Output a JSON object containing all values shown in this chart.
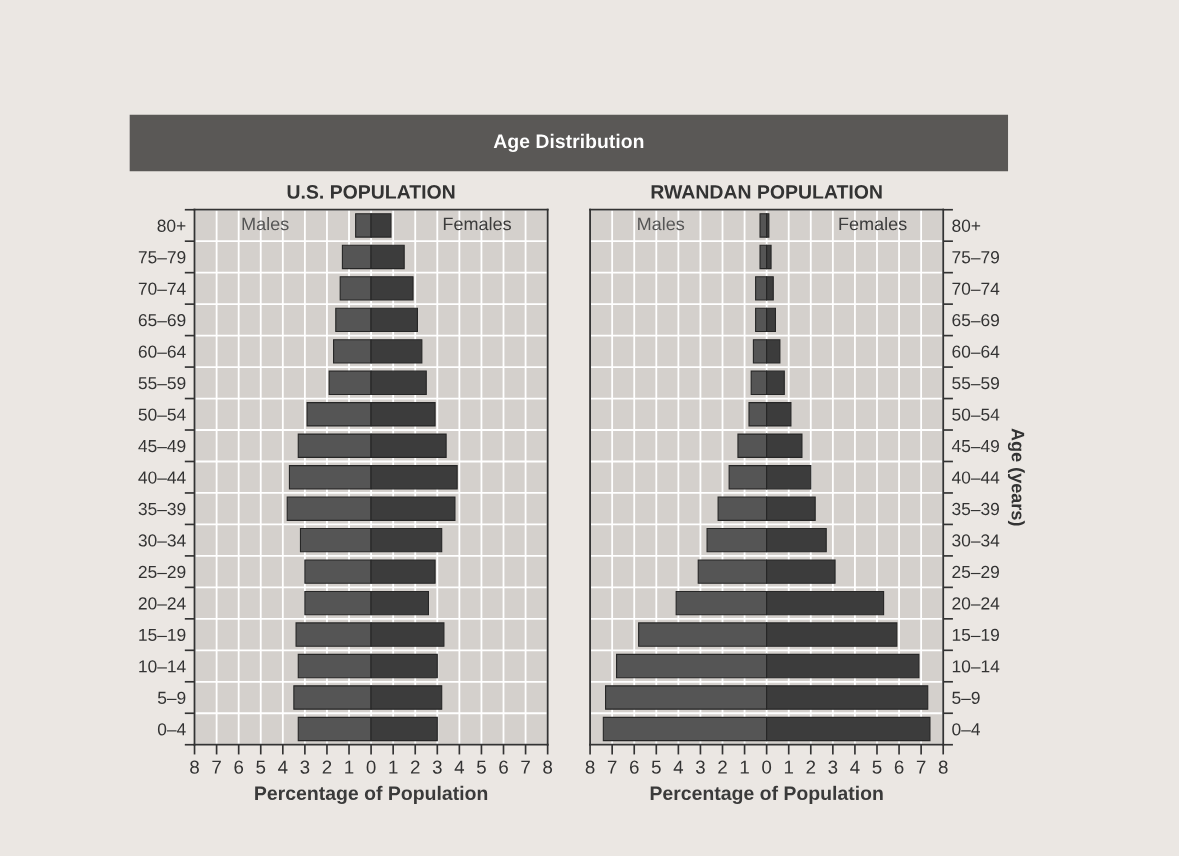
{
  "chart_data": [
    {
      "type": "bar",
      "orientation": "horizontal",
      "stacked": true,
      "title": "Age Distribution",
      "subtitle": "U.S. POPULATION",
      "xlabel": "Percentage of Population",
      "categories": [
        "80+",
        "75–79",
        "70–74",
        "65–69",
        "60–64",
        "55–59",
        "50–54",
        "45–49",
        "40–44",
        "35–39",
        "30–34",
        "25–29",
        "20–24",
        "15–19",
        "10–14",
        "5–9",
        "0–4"
      ],
      "series": [
        {
          "name": "Males",
          "color": "#555555",
          "values": [
            -0.7,
            -1.3,
            -1.4,
            -1.6,
            -1.7,
            -1.9,
            -2.9,
            -3.3,
            -3.7,
            -3.8,
            -3.2,
            -3.0,
            -3.0,
            -3.4,
            -3.3,
            -3.5,
            -3.3
          ]
        },
        {
          "name": "Females",
          "color": "#3c3c3c",
          "values": [
            0.9,
            1.5,
            1.9,
            2.1,
            2.3,
            2.5,
            2.9,
            3.4,
            3.9,
            3.8,
            3.2,
            2.9,
            2.6,
            3.3,
            3.0,
            3.2,
            3.0
          ]
        }
      ],
      "xlim": [
        -8,
        8
      ],
      "xticks": [
        {
          "value": -8,
          "label": "8"
        },
        {
          "value": -7,
          "label": "7"
        },
        {
          "value": -6,
          "label": "6"
        },
        {
          "value": -5,
          "label": "5"
        },
        {
          "value": -4,
          "label": "4"
        },
        {
          "value": -3,
          "label": "3"
        },
        {
          "value": -2,
          "label": "2"
        },
        {
          "value": -1,
          "label": "1"
        },
        0,
        1,
        2,
        3,
        4,
        5,
        6,
        7,
        8
      ],
      "grid": true
    },
    {
      "type": "bar",
      "orientation": "horizontal",
      "stacked": true,
      "subtitle": "RWANDAN POPULATION",
      "xlabel": "Percentage of Population",
      "ylabel": "Age (years)",
      "categories": [
        "80+",
        "75–79",
        "70–74",
        "65–69",
        "60–64",
        "55–59",
        "50–54",
        "45–49",
        "40–44",
        "35–39",
        "30–34",
        "25–29",
        "20–24",
        "15–19",
        "10–14",
        "5–9",
        "0–4"
      ],
      "series": [
        {
          "name": "Males",
          "color": "#555555",
          "values": [
            -0.3,
            -0.3,
            -0.5,
            -0.5,
            -0.6,
            -0.7,
            -0.8,
            -1.3,
            -1.7,
            -2.2,
            -2.7,
            -3.1,
            -4.1,
            -5.8,
            -6.8,
            -7.3,
            -7.4
          ]
        },
        {
          "name": "Females",
          "color": "#3c3c3c",
          "values": [
            0.1,
            0.2,
            0.3,
            0.4,
            0.6,
            0.8,
            1.1,
            1.6,
            2.0,
            2.2,
            2.7,
            3.1,
            5.3,
            5.9,
            6.9,
            7.3,
            7.4
          ]
        }
      ],
      "xlim": [
        -8,
        8
      ],
      "xticks": [
        {
          "value": -8,
          "label": "8"
        },
        {
          "value": -7,
          "label": "7"
        },
        {
          "value": -6,
          "label": "6"
        },
        {
          "value": -5,
          "label": "5"
        },
        {
          "value": -4,
          "label": "4"
        },
        {
          "value": -3,
          "label": "3"
        },
        {
          "value": -2,
          "label": "2"
        },
        {
          "value": -1,
          "label": "1"
        },
        0,
        1,
        2,
        3,
        4,
        5,
        6,
        7,
        8
      ],
      "grid": true
    }
  ]
}
